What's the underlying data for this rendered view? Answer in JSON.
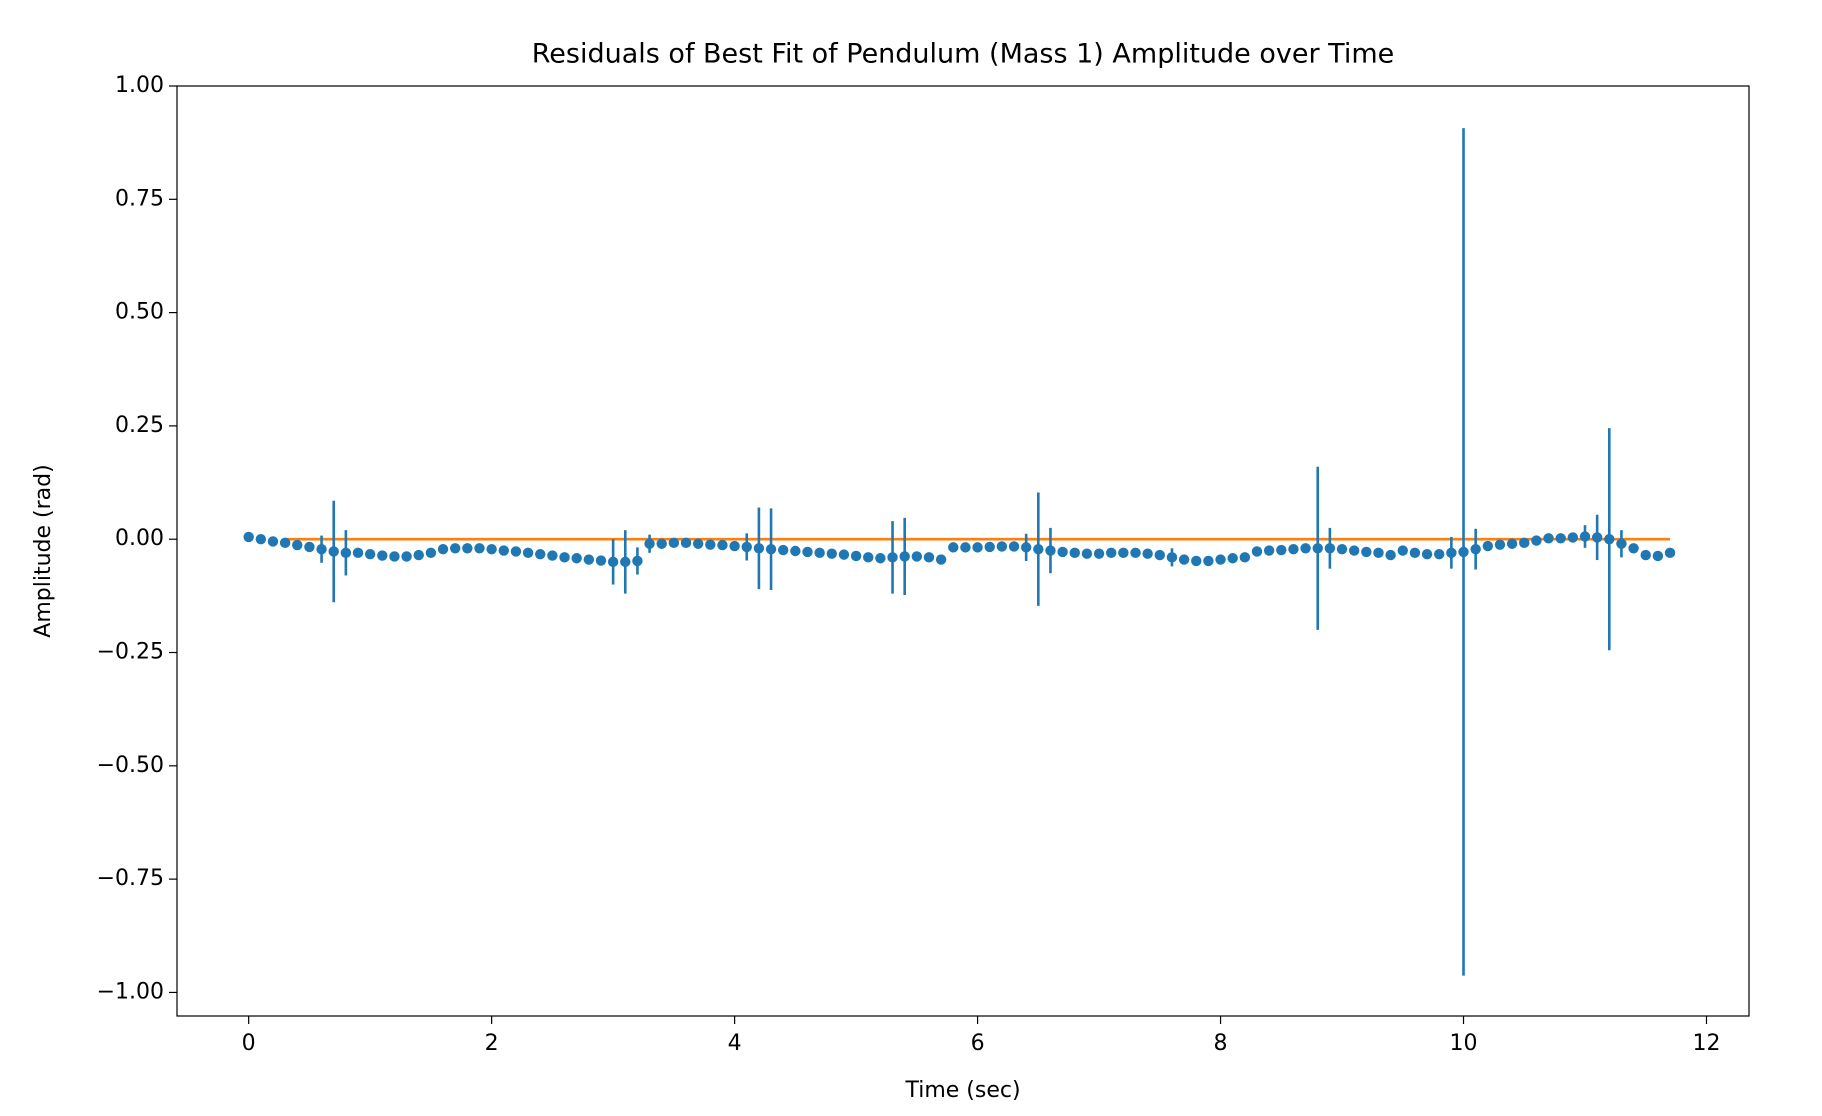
{
  "chart_data": {
    "type": "scatter",
    "title": "Residuals of Best Fit of Pendulum (Mass 1) Amplitude over Time",
    "xlabel": "Time (sec)",
    "ylabel": "Amplitude (rad)",
    "xlim": [
      -0.59,
      12.35
    ],
    "ylim": [
      -1.052,
      1.0
    ],
    "xticks": [
      0,
      2,
      4,
      6,
      8,
      10,
      12
    ],
    "yticks": [
      {
        "value": -1,
        "label": "−1.00"
      },
      {
        "value": -0.75,
        "label": "−0.75"
      },
      {
        "value": -0.5,
        "label": "−0.50"
      },
      {
        "value": -0.25,
        "label": "−0.25"
      },
      {
        "value": 0,
        "label": "0.00"
      },
      {
        "value": 0.25,
        "label": "0.25"
      },
      {
        "value": 0.5,
        "label": "0.50"
      },
      {
        "value": 0.75,
        "label": "0.75"
      },
      {
        "value": 1,
        "label": "1.00"
      }
    ],
    "grid": false,
    "series": [
      {
        "type": "errorbar",
        "color": "#1f77b4",
        "x": [
          0,
          0.1,
          0.2,
          0.3,
          0.4,
          0.5,
          0.6,
          0.7,
          0.8,
          0.9,
          1.0,
          1.1,
          1.2,
          1.3,
          1.4,
          1.5,
          1.6,
          1.7,
          1.8,
          1.9,
          2.0,
          2.1,
          2.2,
          2.3,
          2.4,
          2.5,
          2.6,
          2.7,
          2.8,
          2.9,
          3.0,
          3.1,
          3.2,
          3.3,
          3.4,
          3.5,
          3.6,
          3.7,
          3.8,
          3.9,
          4.0,
          4.1,
          4.2,
          4.3,
          4.4,
          4.5,
          4.6,
          4.7,
          4.8,
          4.9,
          5.0,
          5.1,
          5.2,
          5.3,
          5.4,
          5.5,
          5.6,
          5.7,
          5.8,
          5.9,
          6.0,
          6.1,
          6.2,
          6.3,
          6.4,
          6.5,
          6.6,
          6.7,
          6.8,
          6.9,
          7.0,
          7.1,
          7.2,
          7.3,
          7.4,
          7.5,
          7.6,
          7.7,
          7.8,
          7.9,
          8.0,
          8.1,
          8.2,
          8.3,
          8.4,
          8.5,
          8.6,
          8.7,
          8.8,
          8.9,
          9.0,
          9.1,
          9.2,
          9.3,
          9.4,
          9.5,
          9.6,
          9.7,
          9.8,
          9.9,
          10.0,
          10.1,
          10.2,
          10.3,
          10.4,
          10.5,
          10.6,
          10.7,
          10.8,
          10.9,
          11.0,
          11.1,
          11.2,
          11.3,
          11.4,
          11.5,
          11.6,
          11.7
        ],
        "values": [
          0.005,
          0,
          -0.005,
          -0.008,
          -0.013,
          -0.017,
          -0.022,
          -0.027,
          -0.03,
          -0.03,
          -0.033,
          -0.036,
          -0.038,
          -0.038,
          -0.035,
          -0.03,
          -0.022,
          -0.02,
          -0.02,
          -0.02,
          -0.022,
          -0.025,
          -0.027,
          -0.03,
          -0.033,
          -0.036,
          -0.04,
          -0.042,
          -0.045,
          -0.047,
          -0.05,
          -0.05,
          -0.048,
          -0.01,
          -0.01,
          -0.008,
          -0.008,
          -0.01,
          -0.012,
          -0.013,
          -0.015,
          -0.017,
          -0.02,
          -0.022,
          -0.024,
          -0.026,
          -0.028,
          -0.03,
          -0.032,
          -0.034,
          -0.037,
          -0.04,
          -0.042,
          -0.04,
          -0.038,
          -0.038,
          -0.04,
          -0.045,
          -0.018,
          -0.018,
          -0.018,
          -0.017,
          -0.016,
          -0.016,
          -0.018,
          -0.022,
          -0.025,
          -0.028,
          -0.03,
          -0.032,
          -0.032,
          -0.03,
          -0.03,
          -0.03,
          -0.032,
          -0.035,
          -0.04,
          -0.045,
          -0.048,
          -0.048,
          -0.045,
          -0.042,
          -0.04,
          -0.027,
          -0.025,
          -0.024,
          -0.022,
          -0.02,
          -0.02,
          -0.02,
          -0.022,
          -0.025,
          -0.028,
          -0.03,
          -0.035,
          -0.025,
          -0.03,
          -0.033,
          -0.033,
          -0.03,
          -0.028,
          -0.022,
          -0.015,
          -0.012,
          -0.01,
          -0.008,
          -0.003,
          0.002,
          0.002,
          0.004,
          0.006,
          0.004,
          0,
          -0.01,
          -0.02,
          -0.035,
          -0.037,
          -0.03
        ],
        "errors": [
          0.006,
          0.006,
          0.006,
          0.006,
          0.006,
          0.006,
          0.03,
          0.112,
          0.05,
          0.006,
          0.006,
          0.006,
          0.006,
          0.006,
          0.006,
          0.006,
          0.006,
          0.006,
          0.006,
          0.006,
          0.006,
          0.006,
          0.006,
          0.006,
          0.006,
          0.006,
          0.006,
          0.006,
          0.006,
          0.006,
          0.05,
          0.07,
          0.03,
          0.02,
          0.006,
          0.006,
          0.006,
          0.006,
          0.006,
          0.006,
          0.006,
          0.03,
          0.09,
          0.09,
          0.006,
          0.006,
          0.006,
          0.006,
          0.006,
          0.006,
          0.006,
          0.006,
          0.006,
          0.08,
          0.085,
          0.006,
          0.006,
          0.006,
          0.006,
          0.006,
          0.006,
          0.006,
          0.006,
          0.006,
          0.03,
          0.125,
          0.05,
          0.006,
          0.006,
          0.006,
          0.006,
          0.006,
          0.006,
          0.006,
          0.006,
          0.006,
          0.02,
          0.006,
          0.006,
          0.006,
          0.006,
          0.006,
          0.006,
          0.006,
          0.006,
          0.006,
          0.006,
          0.006,
          0.18,
          0.045,
          0.006,
          0.006,
          0.006,
          0.006,
          0.006,
          0.006,
          0.006,
          0.006,
          0.006,
          0.035,
          0.935,
          0.045,
          0.006,
          0.006,
          0.006,
          0.006,
          0.006,
          0.006,
          0.006,
          0.006,
          0.025,
          0.05,
          0.245,
          0.03,
          0.006,
          0.006,
          0.006,
          0.006
        ]
      },
      {
        "type": "line",
        "color": "#ff7f0e",
        "x": [
          0.3,
          11.7
        ],
        "values": [
          0,
          0
        ]
      }
    ]
  }
}
